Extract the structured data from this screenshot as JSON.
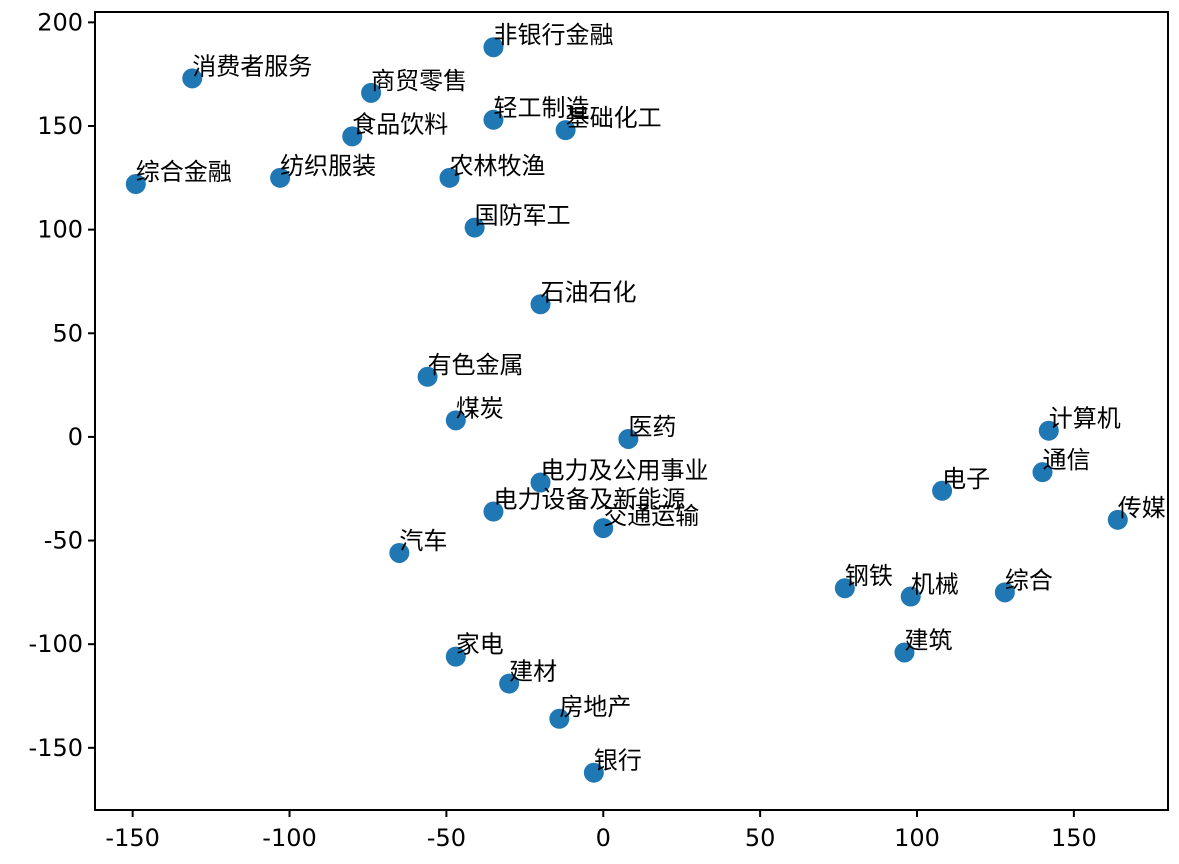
{
  "chart_data": {
    "type": "scatter",
    "title": "",
    "xlabel": "",
    "ylabel": "",
    "xlim": [
      -162,
      180
    ],
    "ylim": [
      -180,
      205
    ],
    "xticks": [
      -150,
      -100,
      -50,
      0,
      50,
      100,
      150
    ],
    "yticks": [
      -150,
      -100,
      -50,
      0,
      50,
      100,
      150,
      200
    ],
    "grid": false,
    "point_color": "#1f77b4",
    "points": [
      {
        "label": "非银行金融",
        "x": -35,
        "y": 188
      },
      {
        "label": "消费者服务",
        "x": -131,
        "y": 173
      },
      {
        "label": "商贸零售",
        "x": -74,
        "y": 166
      },
      {
        "label": "轻工制造",
        "x": -35,
        "y": 153
      },
      {
        "label": "基础化工",
        "x": -12,
        "y": 148
      },
      {
        "label": "食品饮料",
        "x": -80,
        "y": 145
      },
      {
        "label": "综合金融",
        "x": -149,
        "y": 122
      },
      {
        "label": "纺织服装",
        "x": -103,
        "y": 125
      },
      {
        "label": "农林牧渔",
        "x": -49,
        "y": 125
      },
      {
        "label": "国防军工",
        "x": -41,
        "y": 101
      },
      {
        "label": "石油石化",
        "x": -20,
        "y": 64
      },
      {
        "label": "有色金属",
        "x": -56,
        "y": 29
      },
      {
        "label": "煤炭",
        "x": -47,
        "y": 8
      },
      {
        "label": "医药",
        "x": 8,
        "y": -1
      },
      {
        "label": "电力及公用事业",
        "x": -20,
        "y": -22
      },
      {
        "label": "电力设备及新能源",
        "x": -35,
        "y": -36
      },
      {
        "label": "交通运输",
        "x": 0,
        "y": -44
      },
      {
        "label": "汽车",
        "x": -65,
        "y": -56
      },
      {
        "label": "计算机",
        "x": 142,
        "y": 3
      },
      {
        "label": "通信",
        "x": 140,
        "y": -17
      },
      {
        "label": "电子",
        "x": 108,
        "y": -26
      },
      {
        "label": "传媒",
        "x": 164,
        "y": -40
      },
      {
        "label": "钢铁",
        "x": 77,
        "y": -73
      },
      {
        "label": "机械",
        "x": 98,
        "y": -77
      },
      {
        "label": "综合",
        "x": 128,
        "y": -75
      },
      {
        "label": "建筑",
        "x": 96,
        "y": -104
      },
      {
        "label": "家电",
        "x": -47,
        "y": -106
      },
      {
        "label": "建材",
        "x": -30,
        "y": -119
      },
      {
        "label": "房地产",
        "x": -14,
        "y": -136
      },
      {
        "label": "银行",
        "x": -3,
        "y": -162
      }
    ]
  }
}
